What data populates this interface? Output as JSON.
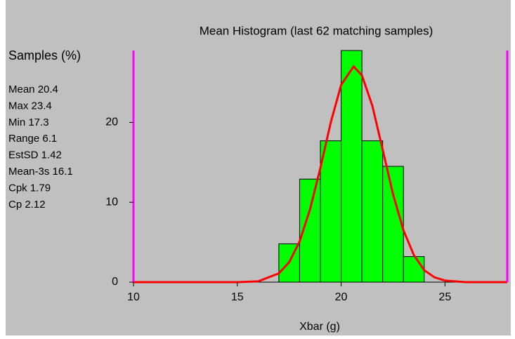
{
  "chart_data": {
    "type": "histogram",
    "title": "Mean Histogram (last 62 matching samples)",
    "ylabel": "Samples (%)",
    "xlabel": "Xbar (g)",
    "stats": [
      "Mean 20.4",
      "Max 23.4",
      "Min 17.3",
      "Range 6.1",
      "EstSD 1.42",
      "Mean-3s 16.1",
      "Cpk 1.79",
      "Cp 2.12"
    ],
    "bins": [
      17,
      18,
      19,
      20,
      21,
      22,
      23,
      24
    ],
    "values": [
      4.8,
      12.9,
      17.7,
      29.0,
      17.7,
      14.5,
      3.2
    ],
    "color": "#00ff00",
    "curve": {
      "color": "#ff0000",
      "x": [
        10,
        15,
        16,
        17,
        17.5,
        18,
        18.5,
        19,
        19.5,
        20,
        20.6,
        21,
        21.5,
        22,
        22.5,
        23,
        23.5,
        24,
        24.5,
        25,
        26,
        28
      ],
      "y": [
        0,
        0,
        0.1,
        1.1,
        2.5,
        5.1,
        9.1,
        14.3,
        20.0,
        24.7,
        27.0,
        25.9,
        22.1,
        16.6,
        11.0,
        6.5,
        3.4,
        1.5,
        0.6,
        0.2,
        0,
        0
      ]
    },
    "limits": {
      "color": "#ff00ff",
      "values": [
        10,
        28
      ]
    },
    "xlim": [
      10,
      28
    ],
    "ylim": [
      0,
      29
    ],
    "xticks": [
      10,
      15,
      20,
      25
    ],
    "yticks": [
      0,
      10,
      20
    ]
  }
}
